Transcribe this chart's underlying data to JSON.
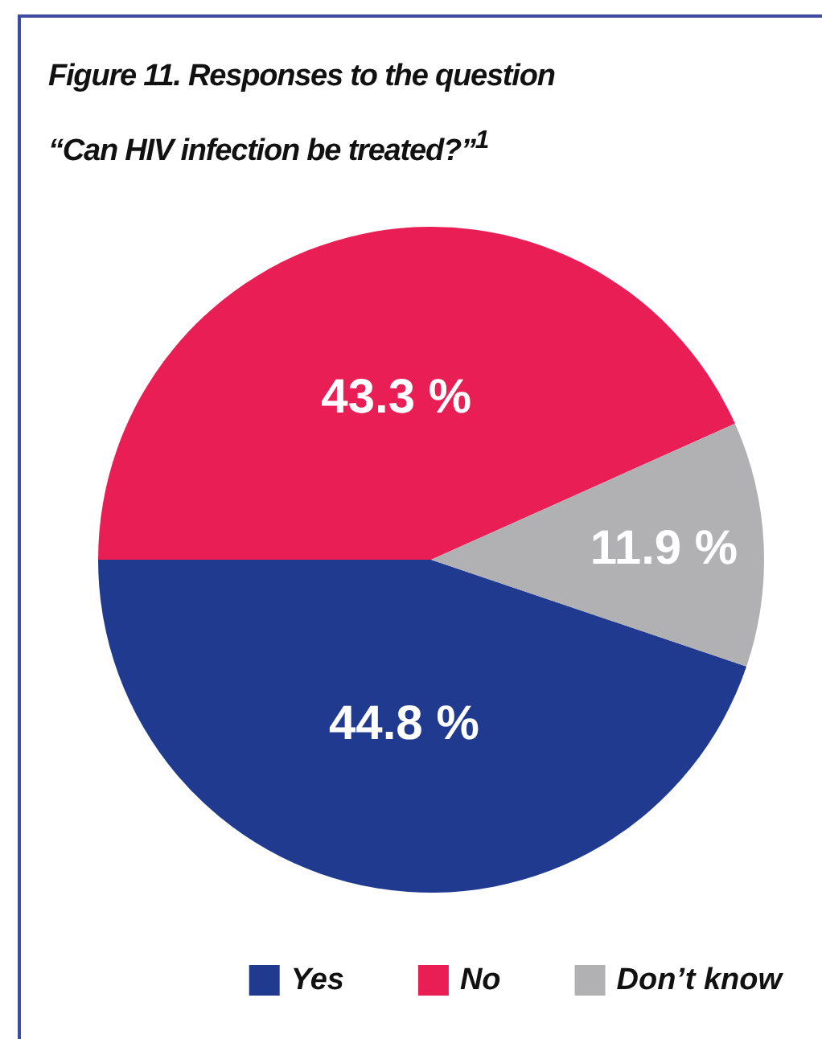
{
  "chart_data": {
    "type": "pie",
    "title": "Figure 11. Responses to the question “Can HIV infection be treated?”$^{1}$",
    "categories": [
      "Yes",
      "No",
      "Don’t know"
    ],
    "values": [
      44.8,
      43.3,
      11.9
    ],
    "colors": [
      "#1f3a8e",
      "#e91e55",
      "#b1b1b3"
    ],
    "value_labels": [
      "44.8 %",
      "43.3 %",
      "11.9 %"
    ],
    "legend": "bottom right"
  }
}
